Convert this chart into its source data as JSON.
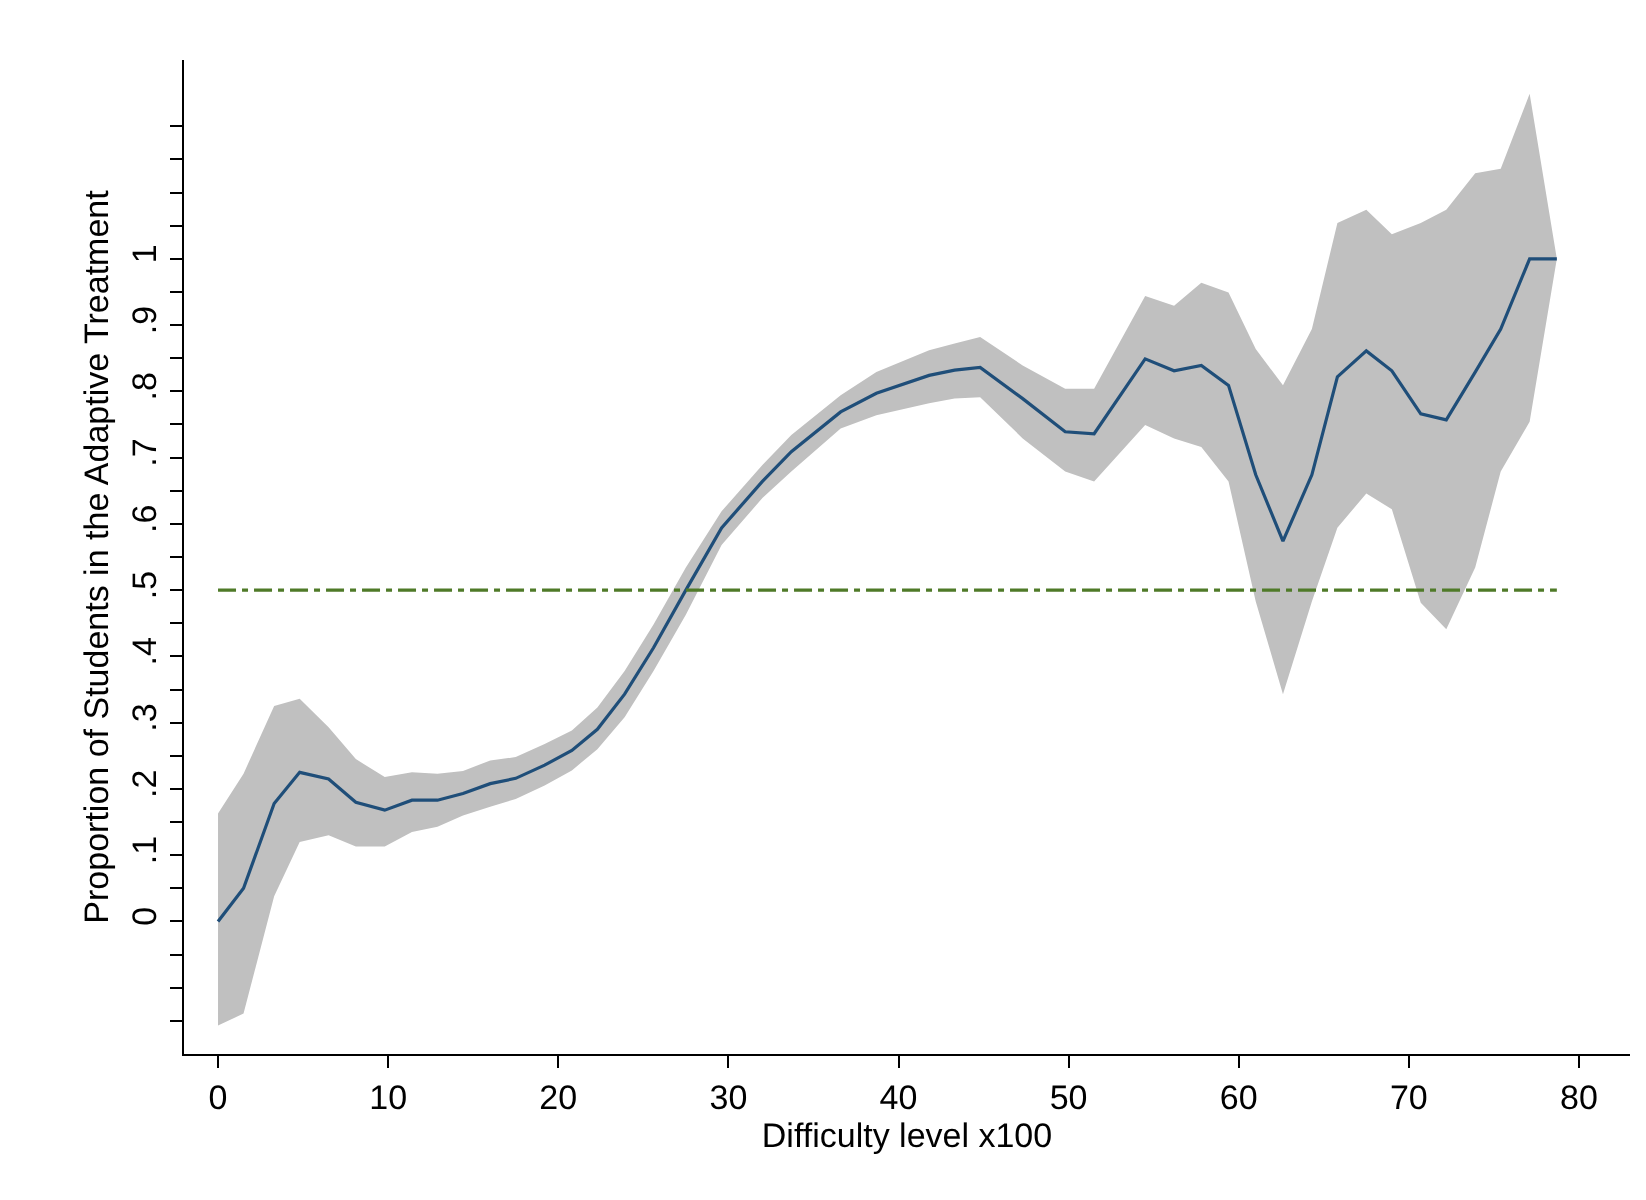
{
  "chart_data": {
    "type": "line",
    "xlabel": "Difficulty level x100",
    "ylabel": "Proportion of Students in the Adaptive Treatment",
    "x": [
      0,
      1.5,
      3.3,
      4.8,
      6.5,
      8.1,
      9.8,
      11.4,
      12.9,
      14.4,
      16.0,
      17.5,
      19.2,
      20.8,
      22.3,
      23.9,
      25.6,
      27.5,
      29.6,
      32.0,
      33.7,
      36.6,
      38.7,
      41.8,
      43.3,
      44.8,
      47.3,
      49.8,
      51.5,
      54.5,
      56.2,
      57.8,
      59.4,
      61.0,
      62.6,
      64.3,
      65.8,
      67.5,
      69.0,
      70.7,
      72.2,
      73.9,
      75.4,
      77.1,
      78.7
    ],
    "series": [
      {
        "color": "#1f4e79",
        "values": [
          0.0,
          0.05,
          0.178,
          0.225,
          0.215,
          0.18,
          0.168,
          0.183,
          0.183,
          0.193,
          0.208,
          0.216,
          0.236,
          0.258,
          0.29,
          0.343,
          0.413,
          0.5,
          0.594,
          0.664,
          0.709,
          0.769,
          0.797,
          0.824,
          0.832,
          0.836,
          0.789,
          0.739,
          0.736,
          0.849,
          0.831,
          0.839,
          0.809,
          0.674,
          0.574,
          0.674,
          0.822,
          0.861,
          0.831,
          0.766,
          0.757,
          0.829,
          0.894,
          1.0,
          1.0
        ],
        "lower": [
          -0.157,
          -0.139,
          0.038,
          0.12,
          0.13,
          0.113,
          0.113,
          0.135,
          0.143,
          0.16,
          0.173,
          0.185,
          0.205,
          0.228,
          0.26,
          0.308,
          0.378,
          0.463,
          0.568,
          0.639,
          0.679,
          0.744,
          0.764,
          0.782,
          0.789,
          0.791,
          0.729,
          0.679,
          0.664,
          0.749,
          0.729,
          0.716,
          0.664,
          0.483,
          0.343,
          0.483,
          0.594,
          0.646,
          0.622,
          0.481,
          0.441,
          0.534,
          0.679,
          0.754,
          1.0
        ],
        "upper": [
          0.163,
          0.223,
          0.325,
          0.336,
          0.293,
          0.245,
          0.218,
          0.225,
          0.223,
          0.227,
          0.243,
          0.248,
          0.268,
          0.288,
          0.323,
          0.378,
          0.448,
          0.534,
          0.619,
          0.689,
          0.734,
          0.794,
          0.829,
          0.862,
          0.872,
          0.882,
          0.839,
          0.804,
          0.804,
          0.944,
          0.929,
          0.964,
          0.949,
          0.864,
          0.809,
          0.894,
          1.054,
          1.074,
          1.037,
          1.054,
          1.074,
          1.129,
          1.136,
          1.249,
          1.0
        ]
      }
    ],
    "xlim": [
      -2,
      83
    ],
    "xticks": [
      0,
      10,
      20,
      30,
      40,
      50,
      60,
      70,
      80
    ],
    "ylim": [
      -0.2,
      1.3
    ],
    "yticks": [
      {
        "value": -0.15,
        "label": null
      },
      {
        "value": -0.1,
        "label": null
      },
      {
        "value": -0.05,
        "label": null
      },
      {
        "value": 0,
        "label": "0"
      },
      {
        "value": 0.05,
        "label": null
      },
      {
        "value": 0.1,
        "label": ".1"
      },
      {
        "value": 0.15,
        "label": null
      },
      {
        "value": 0.2,
        "label": ".2"
      },
      {
        "value": 0.25,
        "label": null
      },
      {
        "value": 0.3,
        "label": ".3"
      },
      {
        "value": 0.35,
        "label": null
      },
      {
        "value": 0.4,
        "label": ".4"
      },
      {
        "value": 0.45,
        "label": null
      },
      {
        "value": 0.5,
        "label": ".5"
      },
      {
        "value": 0.55,
        "label": null
      },
      {
        "value": 0.6,
        "label": ".6"
      },
      {
        "value": 0.65,
        "label": null
      },
      {
        "value": 0.7,
        "label": ".7"
      },
      {
        "value": 0.75,
        "label": null
      },
      {
        "value": 0.8,
        "label": ".8"
      },
      {
        "value": 0.85,
        "label": null
      },
      {
        "value": 0.9,
        "label": ".9"
      },
      {
        "value": 0.95,
        "label": null
      },
      {
        "value": 1,
        "label": "1"
      },
      {
        "value": 1.05,
        "label": null
      },
      {
        "value": 1.1,
        "label": null
      },
      {
        "value": 1.15,
        "label": null
      },
      {
        "value": 1.2,
        "label": null
      }
    ],
    "ref_lines": [
      {
        "axis": "y",
        "value": 0.5,
        "color": "#4f7a28",
        "line_style": "dashdot"
      }
    ],
    "marker": "none",
    "line_style": "solid"
  }
}
